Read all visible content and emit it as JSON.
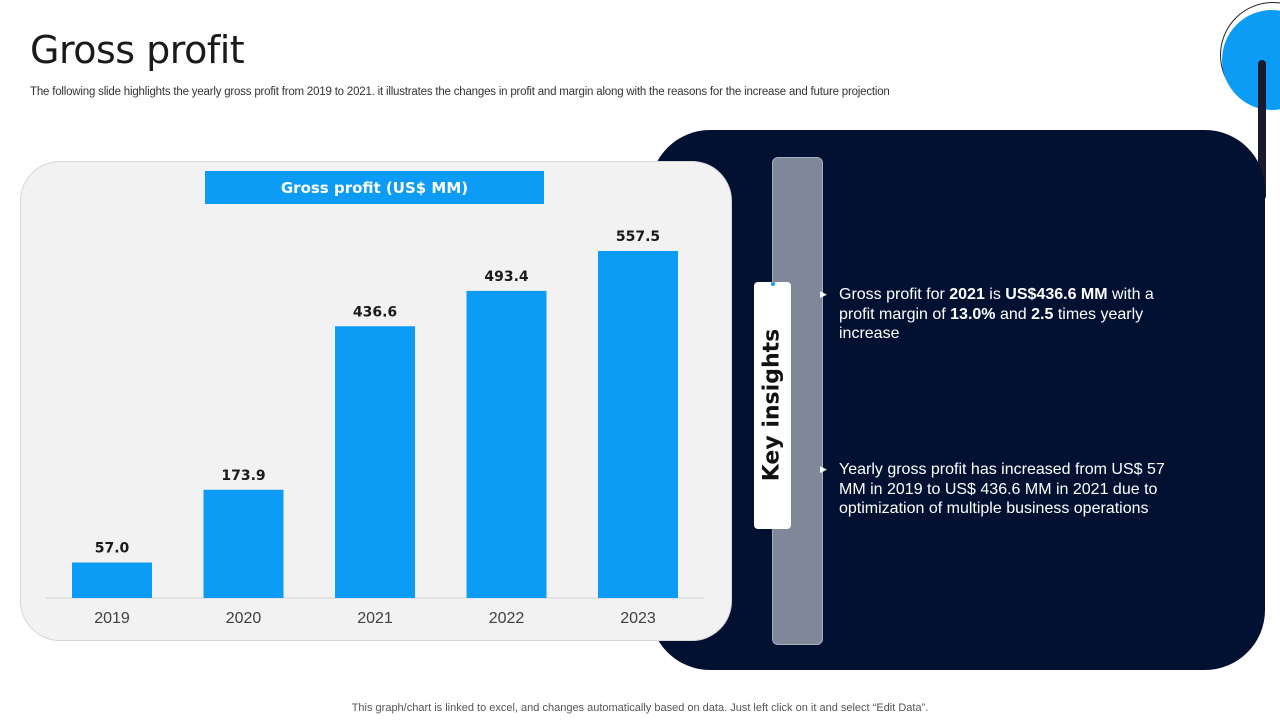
{
  "page": {
    "title": "Gross profit",
    "subtitle": "The following slide highlights the yearly gross profit from 2019 to  2021. it illustrates the changes in profit and margin along with the reasons  for the increase and future projection",
    "footer": "This graph/chart is linked to excel,  and changes automatically based on data. Just left click on it and select “Edit Data”."
  },
  "chart_data": {
    "type": "bar",
    "title": "Gross profit (US$ MM)",
    "categories": [
      "2019",
      "2020",
      "2021",
      "2022",
      "2023"
    ],
    "values": [
      57.0,
      173.9,
      436.6,
      493.4,
      557.5
    ],
    "value_labels": [
      "57.0",
      "173.9",
      "436.6",
      "493.4",
      "557.5"
    ],
    "xlabel": "",
    "ylabel": "",
    "ylim": [
      0,
      557.5
    ],
    "grid": false,
    "color": "#0d9cf5"
  },
  "insights": {
    "heading": "Key insights",
    "item1": {
      "p1": "Gross profit for ",
      "b1": "2021",
      "p2": " is ",
      "b2": "US$436.6 MM",
      "p3": " with a profit margin of ",
      "b3": "13.0%",
      "p4": " and ",
      "b4": "2.5",
      "p5": " times yearly  increase"
    },
    "item2": {
      "text": "Yearly gross profit has increased from US$ 57 MM in 2019 to US$ 436.6 MM in 2021 due to optimization of  multiple business operations"
    }
  },
  "colors": {
    "accent": "#0d9cf5",
    "navy": "#021132"
  }
}
